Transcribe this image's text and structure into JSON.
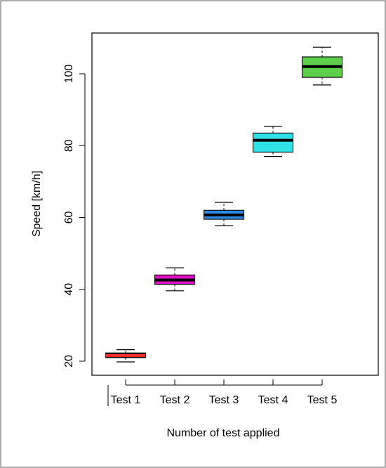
{
  "chart_data": {
    "type": "boxplot",
    "title": "",
    "xlabel": "Number of test applied",
    "ylabel": "Speed [km/h]",
    "ylim": [
      17.5,
      110
    ],
    "yticks": [
      20,
      40,
      60,
      80,
      100
    ],
    "categories": [
      "Test 1",
      "Test 2",
      "Test 3",
      "Test 4",
      "Test 5"
    ],
    "boxes": [
      {
        "category": "Test 1",
        "min": 19.8,
        "q1": 21.0,
        "median": 21.6,
        "q3": 22.3,
        "max": 23.2,
        "color": "#000000",
        "median_color": "#ff2d2d"
      },
      {
        "category": "Test 2",
        "min": 39.6,
        "q1": 41.4,
        "median": 42.6,
        "q3": 44.0,
        "max": 46.0,
        "color": "#e010c8",
        "median_color": "#000000"
      },
      {
        "category": "Test 3",
        "min": 57.7,
        "q1": 59.5,
        "median": 60.7,
        "q3": 62.0,
        "max": 64.2,
        "color": "#2f8ae6",
        "median_color": "#000000"
      },
      {
        "category": "Test 4",
        "min": 77.0,
        "q1": 78.2,
        "median": 81.5,
        "q3": 83.5,
        "max": 85.4,
        "color": "#30e2e6",
        "median_color": "#000000"
      },
      {
        "category": "Test 5",
        "min": 96.9,
        "q1": 99.0,
        "median": 102.0,
        "q3": 104.7,
        "max": 107.4,
        "color": "#5dcf4a",
        "median_color": "#000000"
      }
    ],
    "grid": false,
    "legend": "none"
  }
}
